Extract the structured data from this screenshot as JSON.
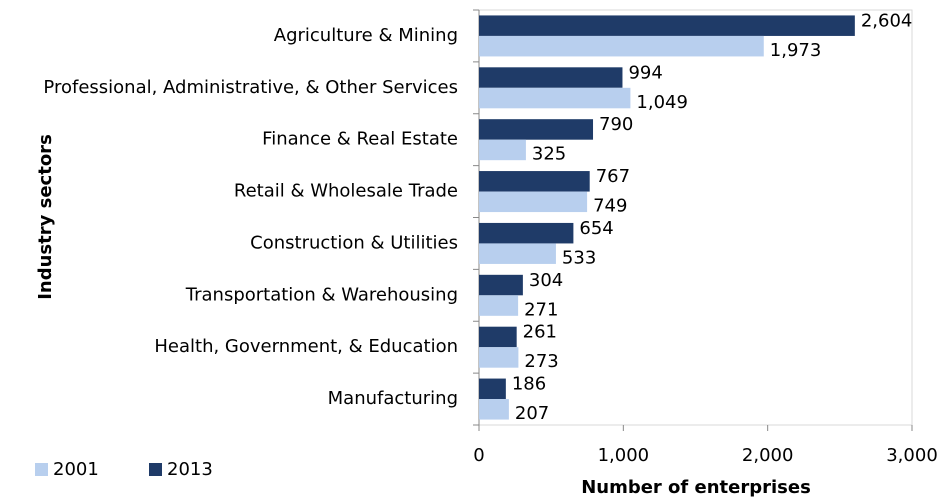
{
  "chart_data": {
    "type": "hbar",
    "xlabel": "Number of enterprises",
    "ylabel": "Industry sectors",
    "categories": [
      "Agriculture & Mining",
      "Professional, Administrative, & Other Services",
      "Finance & Real Estate",
      "Retail & Wholesale Trade",
      "Construction & Utilities",
      "Transportation & Warehousing",
      "Health, Government, & Education",
      "Manufacturing"
    ],
    "series": [
      {
        "name": "2001",
        "color": "#b8cfee",
        "values": [
          1973,
          1049,
          325,
          749,
          533,
          271,
          273,
          207
        ],
        "value_labels": [
          "1,973",
          "1,049",
          "325",
          "749",
          "533",
          "271",
          "273",
          "207"
        ]
      },
      {
        "name": "2013",
        "color": "#1f3b68",
        "values": [
          2604,
          994,
          790,
          767,
          654,
          304,
          261,
          186
        ],
        "value_labels": [
          "2,604",
          "994",
          "790",
          "767",
          "654",
          "304",
          "261",
          "186"
        ]
      }
    ],
    "xlim": [
      0,
      3000
    ],
    "xticks": [
      0,
      {
        "value": 1000,
        "label": "1,000"
      },
      {
        "value": 2000,
        "label": "2,000"
      },
      {
        "value": 3000,
        "label": "3,000"
      }
    ],
    "legend": "bottom-left"
  }
}
